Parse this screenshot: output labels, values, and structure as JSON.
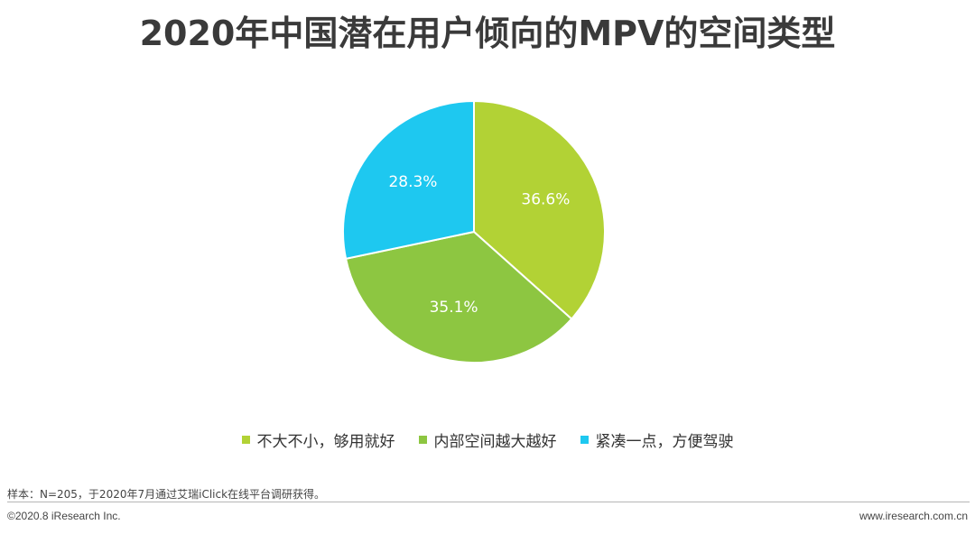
{
  "colors": {
    "lime": "#b2d235",
    "green": "#8dc641",
    "cyan": "#1ec8f0"
  },
  "chart_data": {
    "type": "pie",
    "title": "2020年中国潜在用户倾向的MPV的空间类型",
    "categories": [
      "不大不小，够用就好",
      "内部空间越大越好",
      "紧凑一点，方便驾驶"
    ],
    "values": [
      36.6,
      35.1,
      28.3
    ],
    "labels": [
      "36.6%",
      "35.1%",
      "28.3%"
    ],
    "unit": "%",
    "legend_position": "bottom",
    "colors": [
      "#b2d235",
      "#8dc641",
      "#1ec8f0"
    ]
  },
  "footer": {
    "source": "样本：N=205，于2020年7月通过艾瑞iClick在线平台调研获得。",
    "copyright": "©2020.8 iResearch Inc.",
    "website": "www.iresearch.com.cn"
  }
}
